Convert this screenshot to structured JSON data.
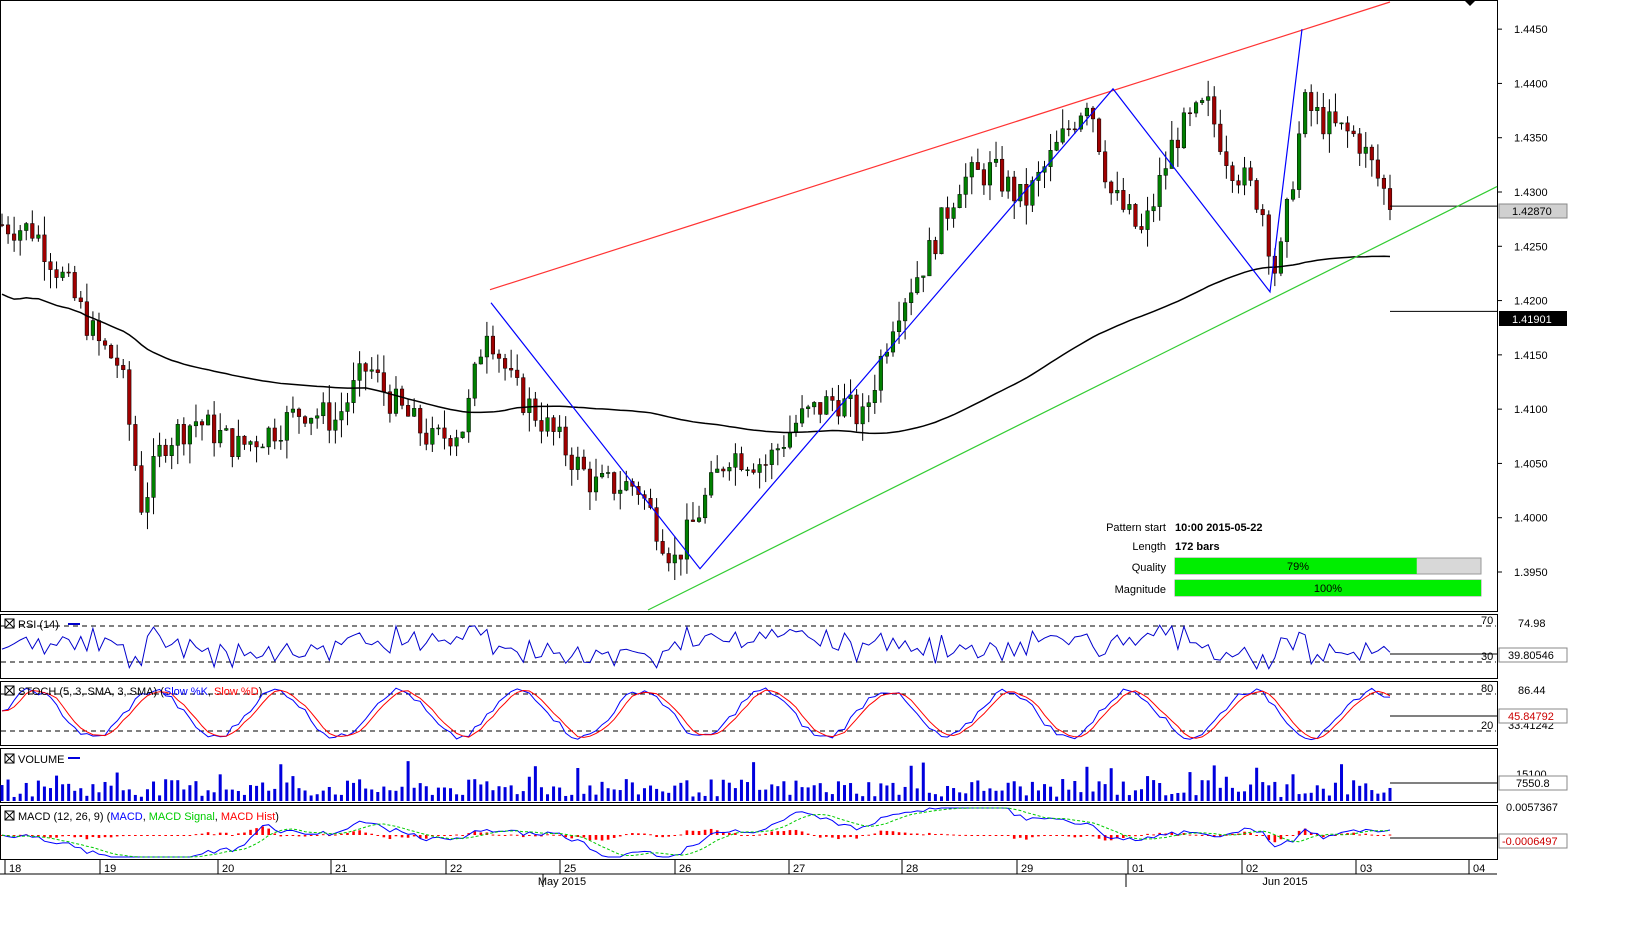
{
  "chart_data": {
    "type": "candlestick",
    "main": {
      "y_ticks": [
        "1.4450",
        "1.4400",
        "1.4350",
        "1.4300",
        "1.4250",
        "1.4200",
        "1.4150",
        "1.4100",
        "1.4050",
        "1.4000",
        "1.3950"
      ],
      "last_price_label": "1.42870",
      "last_price": 1.4287,
      "ma_label": "1.41901",
      "ma_value": 1.41901,
      "ylim": [
        1.3915,
        1.4475
      ]
    },
    "pattern_info": {
      "start_label": "Pattern start",
      "start_value": "10:00 2015-05-22",
      "length_label": "Length",
      "length_value": "172 bars",
      "quality_label": "Quality",
      "quality_value": "79%",
      "quality_fraction": 0.79,
      "magnitude_label": "Magnitude",
      "magnitude_value": "100%",
      "magnitude_fraction": 1.0
    },
    "rsi": {
      "label": "RSI (14)",
      "level_high": "70",
      "level_low": "30",
      "axis_top": "74.98",
      "current_label": "39.80546"
    },
    "stoch": {
      "label_prefix": "STOCH (5, 3, SMA, 3, SMA) (",
      "k_label": "Slow %K",
      "sep": ",",
      "d_label": "Slow %D",
      "label_suffix": ")",
      "level_high": "80",
      "level_low": "20",
      "axis_top": "86.44",
      "current_label": "45.84792",
      "current_label_2": "33.41242"
    },
    "volume": {
      "label": "VOLUME",
      "axis_top": "15100",
      "current_label": "7550.8"
    },
    "macd": {
      "label_prefix": "MACD (12, 26, 9) (",
      "macd_label": "MACD",
      "sep": ",",
      "signal_label": "MACD Signal",
      "hist_label": "MACD Hist",
      "label_suffix": ")",
      "axis_top": "0.0057367",
      "current_label": "-0.0006497"
    },
    "x_axis": {
      "day_labels": [
        "18",
        "19",
        "20",
        "21",
        "22",
        "25",
        "26",
        "27",
        "28",
        "29",
        "01",
        "02",
        "03",
        "04"
      ],
      "month_labels": [
        "May 2015",
        "Jun 2015"
      ]
    },
    "colors": {
      "bull": "#008000",
      "bear": "#a00000",
      "resistance": "#ff3333",
      "support": "#33cc33",
      "pattern": "#0000ff",
      "ma": "#000000",
      "progress": "#00ee00",
      "rsi_line": "#0000cc",
      "stoch_k": "#0000ff",
      "stoch_d": "#ff0000",
      "volume": "#0000dd",
      "macd": "#0000ff",
      "macd_signal": "#00cc00",
      "macd_hist": "#ff0000"
    }
  }
}
